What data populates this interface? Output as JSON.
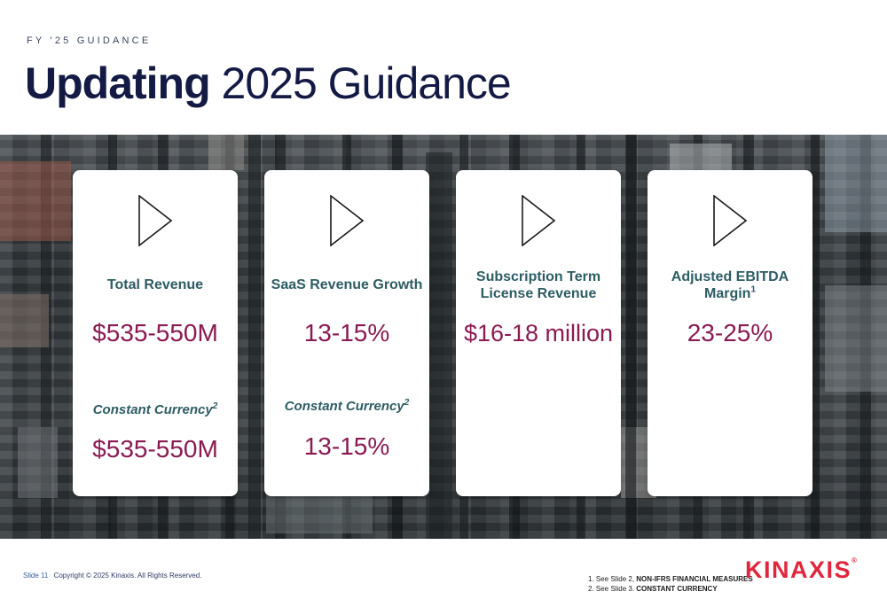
{
  "header": {
    "eyebrow": "FY '25 GUIDANCE",
    "title_bold": "Updating",
    "title_rest": " 2025 Guidance"
  },
  "cards": [
    {
      "label": "Total Revenue",
      "value": "$535-550M",
      "cc_label": "Constant Currency",
      "cc_sup": "2",
      "cc_value": "$535-550M"
    },
    {
      "label": "SaaS Revenue Growth",
      "value": "13-15%",
      "cc_label": "Constant Currency",
      "cc_sup": "2",
      "cc_value": "13-15%"
    },
    {
      "label_line1": "Subscription Term",
      "label_line2": "License Revenue",
      "value": "$16-18 million"
    },
    {
      "label_line1": "Adjusted EBITDA",
      "label_line2": "Margin",
      "label_sup": "1",
      "value": "23-25%"
    }
  ],
  "footer": {
    "slide_number": "Slide 11",
    "copyright": "Copyright © 2025 Kinaxis. All Rights Reserved.",
    "notes": [
      {
        "prefix": "1.  See Slide 2, ",
        "bold": "NON-IFRS FINANCIAL MEASURES"
      },
      {
        "prefix": "2.  See Slide 3. ",
        "bold": "CONSTANT CURRENCY"
      }
    ],
    "logo": "KINAXIS",
    "logo_mark": "®"
  },
  "colors": {
    "title": "#131b45",
    "label_teal": "#2d5d64",
    "value_magenta": "#8a1a52",
    "brand_red": "#e1263c"
  },
  "icons": [
    "play-arrow-icon"
  ]
}
